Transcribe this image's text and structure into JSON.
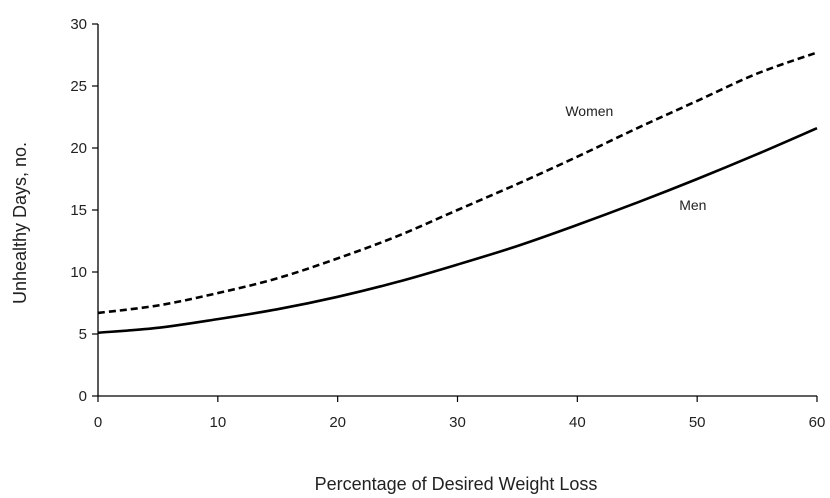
{
  "chart_data": {
    "type": "line",
    "title": "",
    "xlabel": "Percentage of Desired Weight Loss",
    "ylabel": "Unhealthy Days, no.",
    "xlim": [
      0,
      60
    ],
    "ylim": [
      0,
      30
    ],
    "x_ticks": [
      0,
      10,
      20,
      30,
      40,
      50,
      60
    ],
    "y_ticks": [
      0,
      5,
      10,
      15,
      20,
      25,
      30
    ],
    "grid": false,
    "legend": "none (series labeled directly on lines)",
    "series": [
      {
        "name": "Women",
        "style": "dashed",
        "color": "#000000",
        "x": [
          0,
          5,
          10,
          15,
          20,
          25,
          30,
          35,
          40,
          45,
          50,
          55,
          60
        ],
        "y": [
          6.7,
          7.3,
          8.3,
          9.5,
          11.1,
          12.9,
          15.0,
          17.1,
          19.3,
          21.6,
          23.8,
          26.0,
          27.7
        ]
      },
      {
        "name": "Men",
        "style": "solid",
        "color": "#000000",
        "x": [
          0,
          5,
          10,
          15,
          20,
          25,
          30,
          35,
          40,
          45,
          50,
          55,
          60
        ],
        "y": [
          5.1,
          5.5,
          6.2,
          7.0,
          8.0,
          9.2,
          10.6,
          12.1,
          13.8,
          15.6,
          17.5,
          19.5,
          21.6
        ]
      }
    ]
  }
}
